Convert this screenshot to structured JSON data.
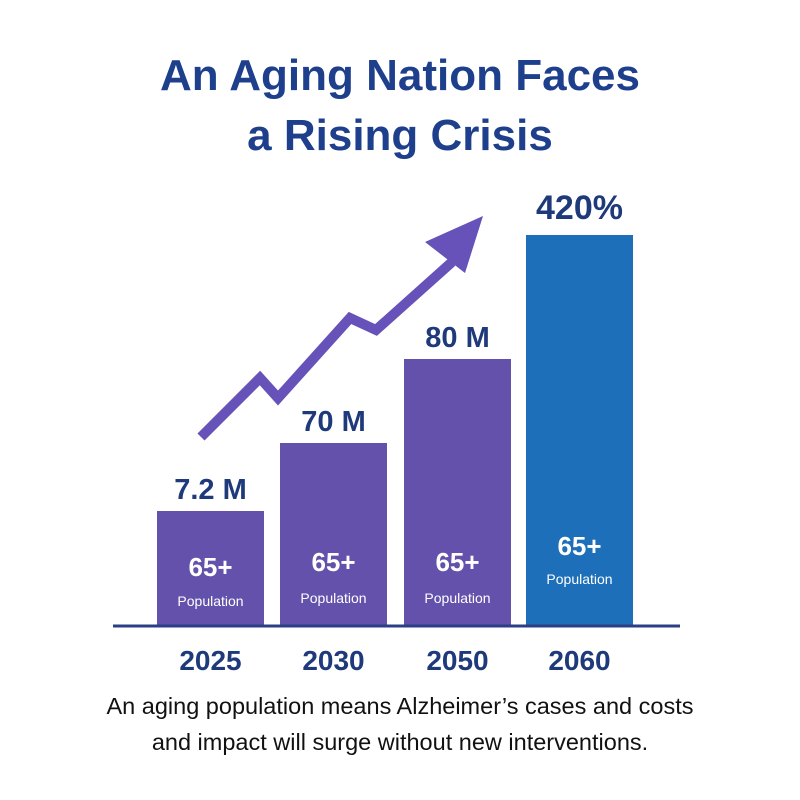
{
  "title_lines": [
    "An Aging Nation Faces",
    "a Rising Crisis"
  ],
  "caption_lines": [
    "An aging population means Alzheimer’s cases and costs",
    "and impact will surge without new interventions."
  ],
  "colors": {
    "title": "#1e3f8c",
    "purple": "#6351ab",
    "blue": "#1c6fb8",
    "axis": "#2a3f86",
    "arrow": "#6652b8",
    "year": "#1f3a7a",
    "value": "#1f3a7a"
  },
  "chart_data": {
    "type": "bar",
    "categories": [
      "2025",
      "2030",
      "2050",
      "2060"
    ],
    "values": [
      7.2,
      70,
      80,
      420
    ],
    "value_labels": [
      "7.2 M",
      "70 M",
      "80 M",
      "420%"
    ],
    "bar_text_main": [
      "65+",
      "65+",
      "65+",
      "65+"
    ],
    "bar_text_sub": [
      "Population",
      "Population",
      "Population",
      "Population"
    ],
    "bar_colors": [
      "purple",
      "purple",
      "purple",
      "blue"
    ],
    "title": "An Aging Nation Faces a Rising Crisis",
    "xlabel": "",
    "ylabel": "",
    "grid": false,
    "legend": "none",
    "trend_arrow": "rising"
  }
}
